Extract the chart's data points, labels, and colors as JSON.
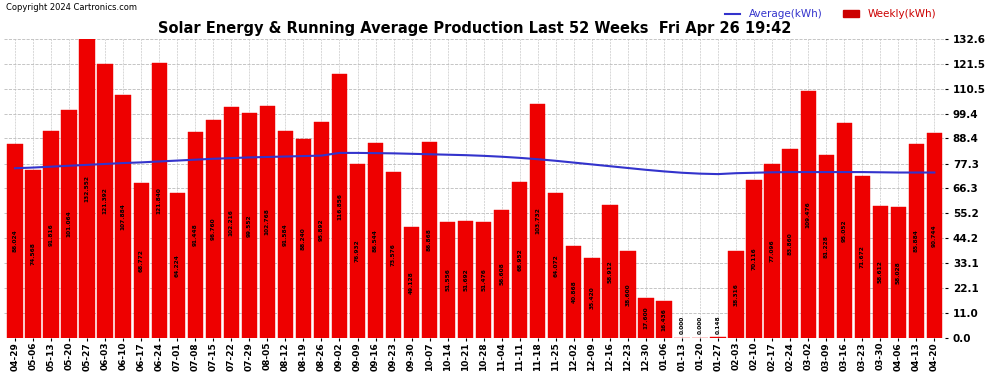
{
  "title": "Solar Energy & Running Average Production Last 52 Weeks  Fri Apr 26 19:42",
  "copyright": "Copyright 2024 Cartronics.com",
  "legend_avg": "Average(kWh)",
  "legend_weekly": "Weekly(kWh)",
  "yticks": [
    0.0,
    11.0,
    22.1,
    33.1,
    44.2,
    55.2,
    66.3,
    77.3,
    88.4,
    99.4,
    110.5,
    121.5,
    132.6
  ],
  "bar_color": "#ee0000",
  "avg_line_color": "#3333cc",
  "weekly_color": "#cc0000",
  "background_color": "#ffffff",
  "grid_color": "#bbbbbb",
  "categories": [
    "04-29",
    "05-06",
    "05-13",
    "05-20",
    "05-27",
    "06-03",
    "06-10",
    "06-17",
    "06-24",
    "07-01",
    "07-08",
    "07-15",
    "07-22",
    "07-29",
    "08-05",
    "08-12",
    "08-19",
    "08-26",
    "09-02",
    "09-09",
    "09-16",
    "09-23",
    "09-30",
    "10-07",
    "10-14",
    "10-21",
    "10-28",
    "11-04",
    "11-11",
    "11-18",
    "11-25",
    "12-02",
    "12-09",
    "12-16",
    "12-23",
    "12-30",
    "01-06",
    "01-13",
    "01-20",
    "01-27",
    "02-03",
    "02-10",
    "02-17",
    "02-24",
    "03-02",
    "03-09",
    "03-16",
    "03-23",
    "03-30",
    "04-06",
    "04-13",
    "04-20"
  ],
  "bar_values": [
    86.024,
    74.568,
    91.816,
    101.064,
    132.552,
    121.392,
    107.884,
    68.772,
    121.84,
    64.224,
    91.448,
    96.76,
    102.216,
    99.552,
    102.768,
    91.584,
    88.24,
    95.892,
    116.856,
    76.932,
    86.544,
    73.576,
    49.128,
    86.868,
    51.556,
    51.692,
    51.476,
    56.608,
    68.952,
    103.732,
    64.072,
    40.868,
    35.42,
    58.912,
    38.6,
    17.6,
    16.436,
    0.0,
    0.0,
    0.148,
    38.316,
    70.116,
    77.096,
    83.86,
    109.476,
    81.228,
    95.052,
    71.672,
    58.612,
    58.028,
    85.884,
    90.744
  ],
  "avg_values": [
    75.2,
    75.5,
    75.9,
    76.3,
    76.7,
    77.1,
    77.5,
    77.8,
    78.2,
    78.6,
    79.0,
    79.4,
    79.7,
    80.0,
    80.2,
    80.4,
    80.6,
    80.8,
    82.0,
    82.0,
    81.9,
    81.8,
    81.6,
    81.4,
    81.2,
    81.0,
    80.7,
    80.3,
    79.8,
    79.2,
    78.5,
    77.7,
    76.9,
    76.1,
    75.3,
    74.5,
    73.8,
    73.2,
    72.8,
    72.6,
    73.0,
    73.2,
    73.4,
    73.5,
    73.5,
    73.5,
    73.5,
    73.5,
    73.4,
    73.3,
    73.3,
    73.3
  ],
  "ylim": [
    0.0,
    132.6
  ],
  "bar_width": 0.85
}
